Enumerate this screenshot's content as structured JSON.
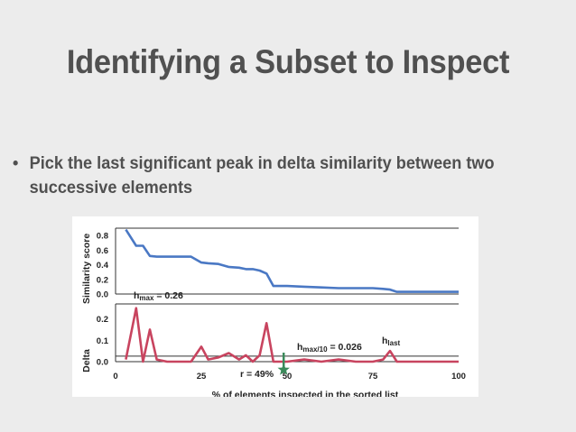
{
  "slide": {
    "title": "Identifying a Subset to Inspect",
    "bullet_marker": "•",
    "bullet_text": "Pick the last significant peak in delta similarity between two successive elements"
  },
  "chart_data": [
    {
      "type": "line",
      "ylabel": "Similarity score",
      "ylim": [
        0,
        0.9
      ],
      "yticks": [
        "0.8",
        "0.6",
        "0.4",
        "0.2",
        "0.0"
      ],
      "color": "#4a78c4",
      "x": [
        3,
        6,
        8,
        10,
        12,
        15,
        20,
        22,
        25,
        27,
        30,
        33,
        36,
        38,
        40,
        42,
        44,
        46,
        50,
        55,
        60,
        65,
        70,
        75,
        78,
        80,
        82,
        85,
        90,
        95,
        100
      ],
      "values": [
        0.88,
        0.66,
        0.66,
        0.52,
        0.51,
        0.51,
        0.51,
        0.51,
        0.43,
        0.42,
        0.41,
        0.37,
        0.36,
        0.34,
        0.34,
        0.32,
        0.28,
        0.11,
        0.11,
        0.1,
        0.09,
        0.08,
        0.08,
        0.08,
        0.07,
        0.06,
        0.03,
        0.03,
        0.03,
        0.03,
        0.03
      ]
    },
    {
      "type": "line",
      "ylabel": "Delta",
      "ylim": [
        0,
        0.27
      ],
      "yticks": [
        "0.2",
        "0.1",
        "0.0"
      ],
      "color": "#c8445f",
      "x": [
        3,
        6,
        8,
        10,
        12,
        15,
        20,
        22,
        25,
        27,
        30,
        33,
        36,
        38,
        40,
        42,
        44,
        46,
        50,
        55,
        60,
        65,
        70,
        75,
        78,
        80,
        82,
        85,
        90,
        95,
        100
      ],
      "values": [
        0.01,
        0.25,
        0.0,
        0.15,
        0.01,
        0.0,
        0.0,
        0.0,
        0.07,
        0.01,
        0.02,
        0.04,
        0.01,
        0.03,
        0.0,
        0.03,
        0.18,
        0.0,
        0.0,
        0.01,
        0.0,
        0.01,
        0.0,
        0.0,
        0.01,
        0.05,
        0.0,
        0.0,
        0.0,
        0.0,
        0.0
      ],
      "threshold": 0.026
    }
  ],
  "xaxis": {
    "label": "% of elements inspected in the sorted list",
    "xlim": [
      0,
      100
    ],
    "ticks": [
      {
        "value": 0,
        "label": "0"
      },
      {
        "value": 25,
        "label": "25"
      },
      {
        "value": 50,
        "label": "50"
      },
      {
        "value": 75,
        "label": "75"
      },
      {
        "value": 100,
        "label": "100"
      }
    ]
  },
  "annotations": {
    "hmax_main": "h",
    "hmax_sub": "max",
    "hmax_value": " = 0.26",
    "hthresh_main": "h",
    "hthresh_sub": "max/10",
    "hthresh_value": " = 0.026",
    "hlast_main": "h",
    "hlast_sub": "last",
    "r_label": "r = 49%",
    "r_value": 49,
    "hlast_x": 80,
    "star_color": "#3a8a5a"
  }
}
